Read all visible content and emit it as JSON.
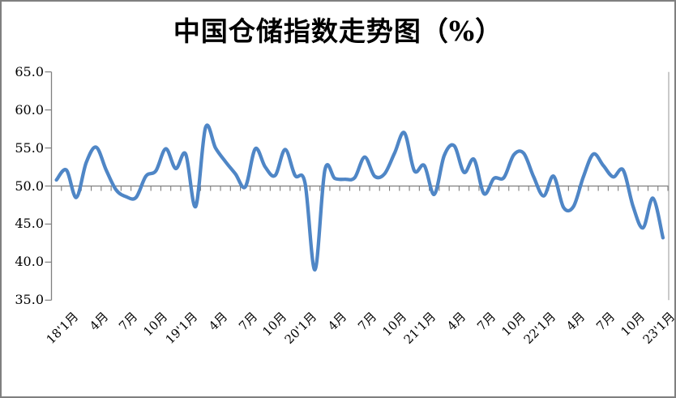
{
  "title": "中国仓储指数走势图（%）",
  "colors": {
    "line": "#4f86c6",
    "axis": "#7f7f7f",
    "plot_right_border": "#a6a6a6",
    "frame_border": "#7f7f7f",
    "text": "#000000",
    "background": "#ffffff"
  },
  "chart_data": {
    "type": "line",
    "title": "中国仓储指数走势图（%）",
    "unit": "%",
    "smooth": true,
    "legend": "none",
    "grid": "off",
    "y_axis": {
      "min": 35,
      "max": 65,
      "tick_interval": 5,
      "ticks": [
        65,
        60,
        55,
        50,
        45,
        40,
        35
      ],
      "tick_labels": [
        "65.0",
        "60.0",
        "55.0",
        "50.0",
        "45.0",
        "40.0",
        "35.0"
      ],
      "category_axis_crosses_at": 50
    },
    "x_axis": {
      "visible_tick_labels": [
        {
          "label": "18'1月",
          "category": 2
        },
        {
          "label": "4月",
          "category": 5
        },
        {
          "label": "7月",
          "category": 8
        },
        {
          "label": "10月",
          "category": 11
        },
        {
          "label": "19'1月",
          "category": 14
        },
        {
          "label": "4月",
          "category": 17
        },
        {
          "label": "7月",
          "category": 20
        },
        {
          "label": "10月",
          "category": 23
        },
        {
          "label": "20'1月",
          "category": 26
        },
        {
          "label": "4月",
          "category": 29
        },
        {
          "label": "7月",
          "category": 32
        },
        {
          "label": "10月",
          "category": 35
        },
        {
          "label": "21'1月",
          "category": 38
        },
        {
          "label": "4月",
          "category": 41
        },
        {
          "label": "7月",
          "category": 44
        },
        {
          "label": "10月",
          "category": 47
        },
        {
          "label": "22'1月",
          "category": 50
        },
        {
          "label": "4月",
          "category": 53
        },
        {
          "label": "7月",
          "category": 56
        },
        {
          "label": "10月",
          "category": 59
        },
        {
          "label": "23'1月",
          "category": 62
        }
      ]
    },
    "months": [
      "2017-12",
      "2018-01",
      "2018-02",
      "2018-03",
      "2018-04",
      "2018-05",
      "2018-06",
      "2018-07",
      "2018-08",
      "2018-09",
      "2018-10",
      "2018-11",
      "2018-12",
      "2019-01",
      "2019-02",
      "2019-03",
      "2019-04",
      "2019-05",
      "2019-06",
      "2019-07",
      "2019-08",
      "2019-09",
      "2019-10",
      "2019-11",
      "2019-12",
      "2020-01",
      "2020-02",
      "2020-03",
      "2020-04",
      "2020-05",
      "2020-06",
      "2020-07",
      "2020-08",
      "2020-09",
      "2020-10",
      "2020-11",
      "2020-12",
      "2021-01",
      "2021-02",
      "2021-03",
      "2021-04",
      "2021-05",
      "2021-06",
      "2021-07",
      "2021-08",
      "2021-09",
      "2021-10",
      "2021-11",
      "2021-12",
      "2022-01",
      "2022-02",
      "2022-03",
      "2022-04",
      "2022-05",
      "2022-06",
      "2022-07",
      "2022-08",
      "2022-09",
      "2022-10",
      "2022-11",
      "2022-12",
      "2023-01"
    ],
    "series": [
      {
        "name": "中国仓储指数",
        "color": "#4f86c6",
        "values": [
          50.8,
          52.1,
          48.5,
          53.1,
          55.1,
          52.1,
          49.5,
          48.6,
          48.5,
          51.3,
          52.0,
          54.9,
          52.3,
          54.2,
          47.3,
          57.7,
          55.0,
          53.2,
          51.6,
          49.9,
          54.9,
          52.5,
          51.4,
          54.8,
          51.4,
          50.4,
          39.0,
          52.1,
          51.0,
          50.9,
          51.1,
          53.8,
          51.3,
          51.6,
          54.3,
          57.0,
          52.0,
          52.7,
          48.9,
          54.0,
          55.3,
          51.8,
          53.5,
          49.0,
          51.0,
          51.1,
          54.1,
          54.3,
          51.2,
          48.7,
          51.3,
          47.2,
          47.3,
          51.2,
          54.2,
          52.7,
          51.2,
          52.1,
          47.3,
          44.5,
          48.4,
          43.2
        ]
      }
    ]
  }
}
